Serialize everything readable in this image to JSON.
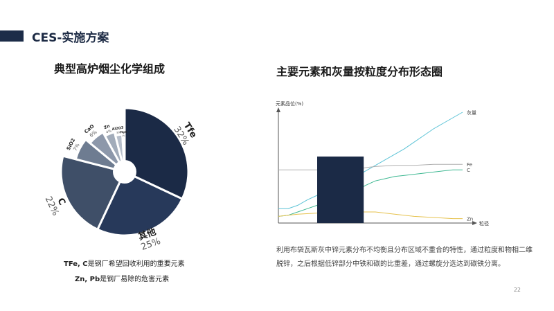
{
  "header": {
    "title": "CES-实施方案"
  },
  "pie": {
    "title": "典型高炉烟尘化学组成",
    "notes": [
      {
        "bold": "TFe, C",
        "text": "是钢厂希望回收利用的重要元素"
      },
      {
        "bold": "Zn, Pb",
        "text": "是钢厂易除的危害元素"
      }
    ]
  },
  "line": {
    "title": "主要元素和灰量按粒度分布形态圈"
  },
  "description": "利用布袋瓦斯灰中锌元素分布不均衡且分布区域不重合的特性，通过粒度和物相二维脱锌，之后根据低锌部分中铁和碳的比重差，通过螺旋分选达到碳铁分离。",
  "page": {
    "number": "22"
  },
  "colors": {
    "tfe": "#1b2a46",
    "other": "#27395a",
    "c": "#3f4f68",
    "sio2": "#6e7c91",
    "cao": "#8d98aa",
    "zn": "#a2acba",
    "al2o3": "#b7bfcb",
    "mgo": "#cbd1da",
    "ash": "#5bc3d6",
    "fe": "#b0b0b0",
    "c_line": "#3eb892",
    "zn_line": "#e6c24e",
    "block": "#1b2a46"
  },
  "chart_data": [
    {
      "type": "pie",
      "slices": [
        {
          "label": "Tfe",
          "value": 32,
          "value_label": "32%"
        },
        {
          "label": "其他",
          "value": 25,
          "value_label": "25%"
        },
        {
          "label": "C",
          "value": 22,
          "value_label": "22%"
        },
        {
          "label": "SiO2",
          "value": 7,
          "value_label": "7%"
        },
        {
          "label": "CaO",
          "value": 6,
          "value_label": "6%"
        },
        {
          "label": "Zn",
          "value": 4,
          "value_label": "4%"
        },
        {
          "label": "Al2O3",
          "value": 3,
          "value_label": "3%"
        },
        {
          "label": "MgO",
          "value": 1,
          "value_label": "1%"
        }
      ]
    },
    {
      "type": "line",
      "ylabel": "元素品位(%)",
      "xlabel": "粒径",
      "xlim": [
        0,
        100
      ],
      "ylim": [
        0,
        100
      ],
      "series": [
        {
          "name": "灰量",
          "x": [
            0,
            5,
            10,
            15,
            20,
            25,
            30,
            35,
            40,
            45,
            50,
            55,
            60,
            65,
            70,
            75,
            80,
            85,
            90,
            95
          ],
          "y": [
            13,
            13,
            16,
            21,
            25,
            29,
            33,
            37,
            42,
            47,
            52,
            57,
            62,
            67,
            73,
            79,
            85,
            90,
            95,
            100
          ]
        },
        {
          "name": "Fe",
          "x": [
            0,
            10,
            20,
            30,
            40,
            45,
            50,
            60,
            70,
            80,
            90,
            95
          ],
          "y": [
            48,
            48,
            48,
            48,
            48,
            50,
            51,
            52,
            52,
            53,
            53,
            53
          ]
        },
        {
          "name": "C",
          "x": [
            0,
            5,
            10,
            15,
            20,
            25,
            30,
            35,
            40,
            42,
            45,
            50,
            55,
            60,
            65,
            70,
            75,
            80,
            85,
            90,
            95
          ],
          "y": [
            6,
            7,
            10,
            13,
            16,
            19,
            22,
            26,
            30,
            31,
            34,
            38,
            40,
            42,
            43,
            44,
            45,
            46,
            47,
            48,
            48
          ]
        },
        {
          "name": "Zn",
          "x": [
            0,
            5,
            10,
            20,
            30,
            40,
            50,
            60,
            70,
            80,
            90,
            95
          ],
          "y": [
            6,
            7,
            8,
            9,
            9,
            10,
            10,
            8,
            6,
            5,
            4,
            4
          ]
        }
      ],
      "block": {
        "x": [
          20,
          44
        ],
        "y": [
          0,
          60
        ]
      }
    }
  ]
}
